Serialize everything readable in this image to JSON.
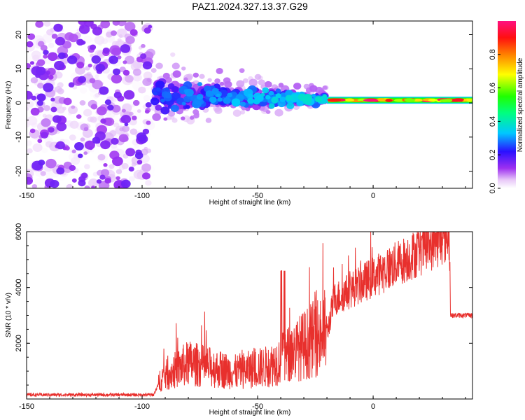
{
  "title": "PAZ1.2024.327.13.37.G29",
  "chart_data": [
    {
      "type": "heatmap",
      "name": "spectrogram",
      "xlabel": "Height of straight line (km)",
      "ylabel": "Frequency (Hz)",
      "xlim": [
        -150,
        43
      ],
      "ylim": [
        -25,
        24
      ],
      "xticks": [
        -150,
        -100,
        -50,
        0
      ],
      "xtick_labels": [
        "-150",
        "-100",
        "-50",
        "0"
      ],
      "yticks": [
        -20,
        -10,
        0,
        10,
        20
      ],
      "ytick_labels": [
        "-20",
        "-10",
        "0",
        "10",
        "20"
      ],
      "colorbar": {
        "label": "Normalized spectral amplitude",
        "range": [
          0,
          1
        ],
        "ticks": [
          0.0,
          0.2,
          0.4,
          0.6,
          0.8
        ],
        "tick_labels": [
          "0.0",
          "0.2",
          "0.4",
          "0.6",
          "0.8"
        ]
      },
      "regions": [
        {
          "x_range": [
            -150,
            -100
          ],
          "frequency_range": [
            -25,
            24
          ],
          "amplitude": [
            0.0,
            0.15
          ],
          "description_pattern": "scattered"
        },
        {
          "x_range": [
            -95,
            -20
          ],
          "frequency_range": [
            -10,
            10
          ],
          "amplitude": [
            0.1,
            0.35
          ],
          "description_pattern": "cluster narrowing"
        },
        {
          "x_range": [
            -20,
            43
          ],
          "frequency_range": [
            -0.5,
            2
          ],
          "amplitude": [
            0.6,
            1.0
          ],
          "description_pattern": "band"
        }
      ]
    },
    {
      "type": "line",
      "name": "snr",
      "xlabel": "Height of straight line (km)",
      "ylabel": "SNR (10 * v/v)",
      "xlim": [
        -150,
        43
      ],
      "ylim": [
        0,
        6000
      ],
      "xticks": [
        -150,
        -100,
        -50,
        0
      ],
      "xtick_labels": [
        "-150",
        "-100",
        "-50",
        "0"
      ],
      "yticks": [
        2000,
        4000,
        6000
      ],
      "ytick_labels": [
        "2000",
        "4000",
        "6000"
      ],
      "color": "#e8302d",
      "series_envelope": [
        {
          "x": -150,
          "y": 150
        },
        {
          "x": -95,
          "y": 150
        },
        {
          "x": -92,
          "y": 700
        },
        {
          "x": -80,
          "y": 1200
        },
        {
          "x": -60,
          "y": 900
        },
        {
          "x": -45,
          "y": 1100
        },
        {
          "x": -30,
          "y": 1800
        },
        {
          "x": -20,
          "y": 2300
        },
        {
          "x": -17,
          "y": 3500
        },
        {
          "x": 0,
          "y": 4300
        },
        {
          "x": 20,
          "y": 5200
        },
        {
          "x": 33,
          "y": 5800
        },
        {
          "x": 33.5,
          "y": 3000
        },
        {
          "x": 43,
          "y": 3000
        }
      ]
    }
  ]
}
